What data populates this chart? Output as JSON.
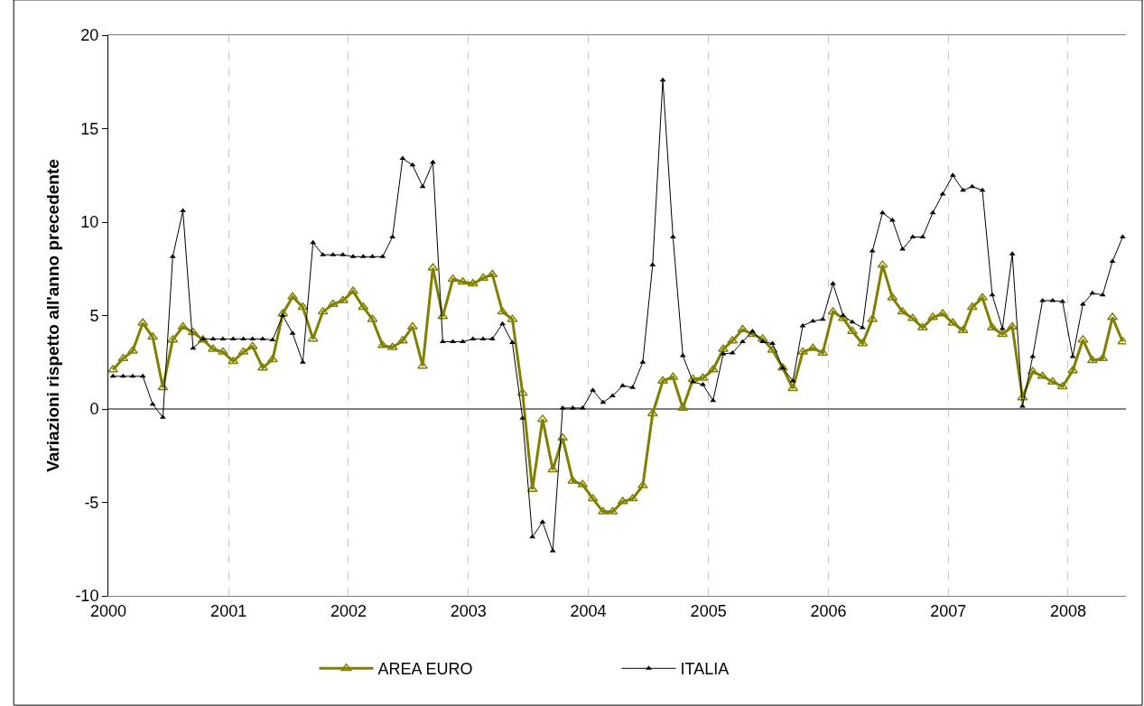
{
  "chart_data": {
    "type": "line",
    "ylabel": "Variazioni rispetto all'anno precedente",
    "x": [
      "2000-01-15",
      "2000-02-15",
      "2000-03-15",
      "2000-04-15",
      "2000-05-15",
      "2000-06-15",
      "2000-07-15",
      "2000-08-15",
      "2000-09-15",
      "2000-10-15",
      "2000-11-15",
      "2000-12-15",
      "2001-01-15",
      "2001-02-15",
      "2001-03-15",
      "2001-04-15",
      "2001-05-15",
      "2001-06-15",
      "2001-07-15",
      "2001-08-15",
      "2001-09-15",
      "2001-10-15",
      "2001-11-15",
      "2001-12-15",
      "2002-01-15",
      "2002-02-15",
      "2002-03-15",
      "2002-04-15",
      "2002-05-15",
      "2002-06-15",
      "2002-07-15",
      "2002-08-15",
      "2002-09-15",
      "2002-10-15",
      "2002-11-15",
      "2002-12-15",
      "2003-01-15",
      "2003-02-15",
      "2003-03-15",
      "2003-04-15",
      "2003-05-15",
      "2003-06-15",
      "2003-07-15",
      "2003-08-15",
      "2003-09-15",
      "2003-10-15",
      "2003-11-15",
      "2003-12-15",
      "2004-01-15",
      "2004-02-15",
      "2004-03-15",
      "2004-04-15",
      "2004-05-15",
      "2004-06-15",
      "2004-07-15",
      "2004-08-15",
      "2004-09-15",
      "2004-10-15",
      "2004-11-15",
      "2004-12-15",
      "2005-01-15",
      "2005-02-15",
      "2005-03-15",
      "2005-04-15",
      "2005-05-15",
      "2005-06-15",
      "2005-07-15",
      "2005-08-15",
      "2005-09-15",
      "2005-10-15",
      "2005-11-15",
      "2005-12-15",
      "2006-01-15",
      "2006-02-15",
      "2006-03-15",
      "2006-04-15",
      "2006-05-15",
      "2006-06-15",
      "2006-07-15",
      "2006-08-15",
      "2006-09-15",
      "2006-10-15",
      "2006-11-15",
      "2006-12-15",
      "2007-01-15",
      "2007-02-15",
      "2007-03-15",
      "2007-04-15",
      "2007-05-15",
      "2007-06-15",
      "2007-07-15",
      "2007-08-15",
      "2007-09-15",
      "2007-10-15",
      "2007-11-15",
      "2007-12-15",
      "2008-01-15",
      "2008-02-15",
      "2008-03-15",
      "2008-04-15",
      "2008-05-15",
      "2008-06-15"
    ],
    "series": [
      {
        "name": "AREA EURO",
        "color": "#808000",
        "marker": "triangle",
        "values": [
          2.1,
          2.7,
          3.1,
          4.6,
          3.85,
          1.15,
          3.7,
          4.4,
          4.1,
          3.7,
          3.2,
          3.05,
          2.55,
          3.05,
          3.35,
          2.2,
          2.65,
          5.1,
          6.0,
          5.45,
          3.75,
          5.2,
          5.6,
          5.8,
          6.3,
          5.45,
          4.8,
          3.4,
          3.3,
          3.65,
          4.4,
          2.3,
          7.55,
          4.95,
          6.95,
          6.8,
          6.7,
          7.0,
          7.2,
          5.2,
          4.8,
          0.85,
          -4.3,
          -0.55,
          -3.25,
          -1.55,
          -3.85,
          -4.05,
          -4.8,
          -5.5,
          -5.5,
          -4.95,
          -4.8,
          -4.1,
          -0.25,
          1.5,
          1.7,
          0.05,
          1.6,
          1.65,
          2.1,
          3.2,
          3.65,
          4.25,
          4.0,
          3.75,
          3.15,
          2.2,
          1.1,
          3.05,
          3.25,
          3.0,
          5.2,
          4.85,
          4.15,
          3.5,
          4.8,
          7.7,
          5.95,
          5.2,
          4.85,
          4.35,
          4.9,
          5.1,
          4.6,
          4.2,
          5.45,
          5.95,
          4.35,
          4.0,
          4.4,
          0.6,
          2.0,
          1.75,
          1.45,
          1.2,
          2.05,
          3.7,
          2.6,
          2.7,
          4.9,
          3.6
        ]
      },
      {
        "name": "ITALIA",
        "color": "#000000",
        "marker": "triangle",
        "values": [
          1.75,
          1.75,
          1.75,
          1.75,
          0.25,
          -0.45,
          8.15,
          10.6,
          3.25,
          3.75,
          3.75,
          3.75,
          3.75,
          3.75,
          3.75,
          3.75,
          3.7,
          5.0,
          4.05,
          2.5,
          8.9,
          8.25,
          8.25,
          8.25,
          8.15,
          8.15,
          8.15,
          8.15,
          9.2,
          13.4,
          13.05,
          11.9,
          13.2,
          3.6,
          3.6,
          3.6,
          3.75,
          3.75,
          3.75,
          4.55,
          3.55,
          -0.5,
          -6.85,
          -6.05,
          -7.6,
          0.05,
          0.05,
          0.05,
          1.0,
          0.35,
          0.7,
          1.25,
          1.15,
          2.5,
          7.7,
          17.6,
          9.2,
          2.85,
          1.45,
          1.3,
          0.45,
          2.95,
          3.0,
          3.6,
          4.15,
          3.6,
          3.5,
          2.2,
          1.5,
          4.45,
          4.7,
          4.8,
          6.7,
          5.0,
          4.65,
          4.35,
          8.45,
          10.5,
          10.1,
          8.55,
          9.2,
          9.2,
          10.5,
          11.5,
          12.5,
          11.7,
          11.9,
          11.7,
          6.1,
          4.3,
          8.3,
          0.15,
          2.8,
          5.8,
          5.8,
          5.75,
          2.8,
          5.6,
          6.2,
          6.1,
          7.9,
          9.2
        ]
      }
    ],
    "xlim": [
      "2000-01-01",
      "2008-06-25"
    ],
    "xticks": [
      "2000",
      "2001",
      "2002",
      "2003",
      "2004",
      "2005",
      "2006",
      "2007",
      "2008"
    ],
    "ylim": [
      -10,
      20
    ],
    "yticks": [
      -10,
      -5,
      0,
      5,
      10,
      15,
      20
    ],
    "grid": "x",
    "legend": "bottom"
  }
}
